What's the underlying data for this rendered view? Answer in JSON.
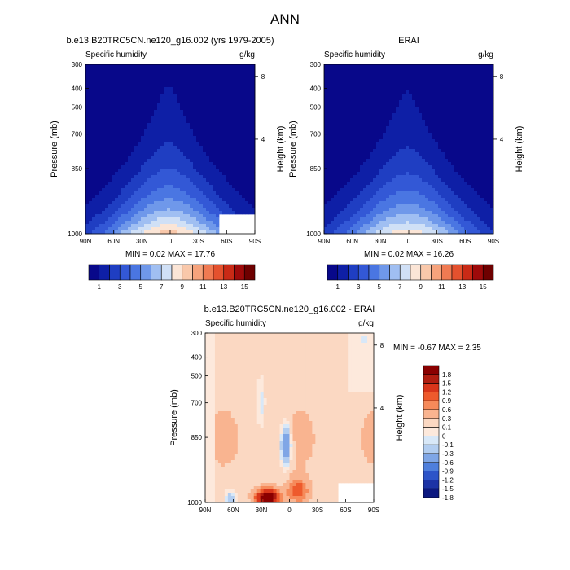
{
  "figure_title": "ANN",
  "chart_data": [
    {
      "type": "contour",
      "title": "b.e13.B20TRC5CN.ne120_g16.002 (yrs 1979-2005)",
      "left_label": "Specific humidity",
      "right_label": "g/kg",
      "ylabel": "Pressure (mb)",
      "ylabel_right": "Height (km)",
      "x_ticks": [
        "90N",
        "60N",
        "30N",
        "0",
        "30S",
        "60S",
        "90S"
      ],
      "y_ticks": [
        "300",
        "400",
        "500",
        "700",
        "850",
        "1000"
      ],
      "y_ticks_right": [
        "8",
        "4"
      ],
      "min_max": "MIN =  0.02  MAX =  17.76",
      "min": 0.02,
      "max": 17.76,
      "colorbar_labels": [
        "1",
        "3",
        "5",
        "7",
        "9",
        "11",
        "13",
        "15"
      ]
    },
    {
      "type": "contour",
      "title": "ERAI",
      "left_label": "Specific humidity",
      "right_label": "g/kg",
      "ylabel": "Pressure (mb)",
      "ylabel_right": "Height (km)",
      "x_ticks": [
        "90N",
        "60N",
        "30N",
        "0",
        "30S",
        "60S",
        "90S"
      ],
      "y_ticks": [
        "300",
        "400",
        "500",
        "700",
        "850",
        "1000"
      ],
      "y_ticks_right": [
        "8",
        "4"
      ],
      "min_max": "MIN =  0.02  MAX =  16.26",
      "min": 0.02,
      "max": 16.26,
      "colorbar_labels": [
        "1",
        "3",
        "5",
        "7",
        "9",
        "11",
        "13",
        "15"
      ]
    },
    {
      "type": "contour",
      "title": "b.e13.B20TRC5CN.ne120_g16.002 - ERAI",
      "left_label": "Specific humidity",
      "right_label": "g/kg",
      "ylabel": "Pressure (mb)",
      "ylabel_right": "Height (km)",
      "x_ticks": [
        "90N",
        "60N",
        "30N",
        "0",
        "30S",
        "60S",
        "90S"
      ],
      "y_ticks": [
        "300",
        "400",
        "500",
        "700",
        "850",
        "1000"
      ],
      "y_ticks_right": [
        "8",
        "4"
      ],
      "min_max": "MIN = -0.67  MAX =   2.35",
      "min": -0.67,
      "max": 2.35,
      "colorbar_labels": [
        "1.8",
        "1.5",
        "1.2",
        "0.9",
        "0.6",
        "0.3",
        "0.1",
        "0",
        "-0.1",
        "-0.3",
        "-0.6",
        "-0.9",
        "-1.2",
        "-1.5",
        "-1.8"
      ]
    }
  ],
  "colors": {
    "seq": [
      "#08088a",
      "#0e1fa6",
      "#1f3ec2",
      "#3358d6",
      "#4a76e2",
      "#6f98ea",
      "#a0bff2",
      "#d0e0f6",
      "#fbe5d6",
      "#f9c8aa",
      "#f6a37c",
      "#f07a52",
      "#e4512e",
      "#c92a16",
      "#9e0a0a",
      "#6e0000"
    ],
    "diff": [
      "#8a0000",
      "#b01d10",
      "#d8351a",
      "#ee5a2c",
      "#f68a5a",
      "#f9b490",
      "#fbd8c2",
      "#fde9dc",
      "#d8e8f8",
      "#b2cdf0",
      "#7fa6e6",
      "#4f7fdc",
      "#2d54c8",
      "#1c33a6",
      "#0c1880"
    ]
  }
}
